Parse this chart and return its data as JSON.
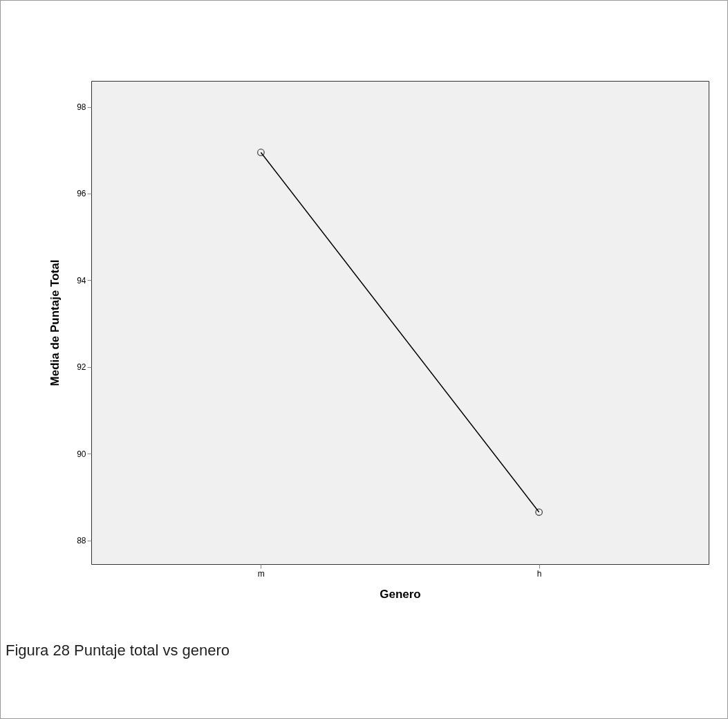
{
  "chart_data": {
    "type": "line",
    "xlabel": "Genero",
    "ylabel": "Media de Puntaje Total",
    "categories": [
      "m",
      "h"
    ],
    "series": [
      {
        "color": "#000000",
        "values": [
          96.95,
          88.65
        ]
      }
    ],
    "ylim": [
      87.45,
      98.6
    ],
    "yticks": [
      88,
      90,
      92,
      94,
      96,
      98
    ],
    "grid": false,
    "legend": false,
    "marker": "circle",
    "line_style": "solid",
    "annotations": [
      "Figura 28 Puntaje total vs genero"
    ]
  }
}
